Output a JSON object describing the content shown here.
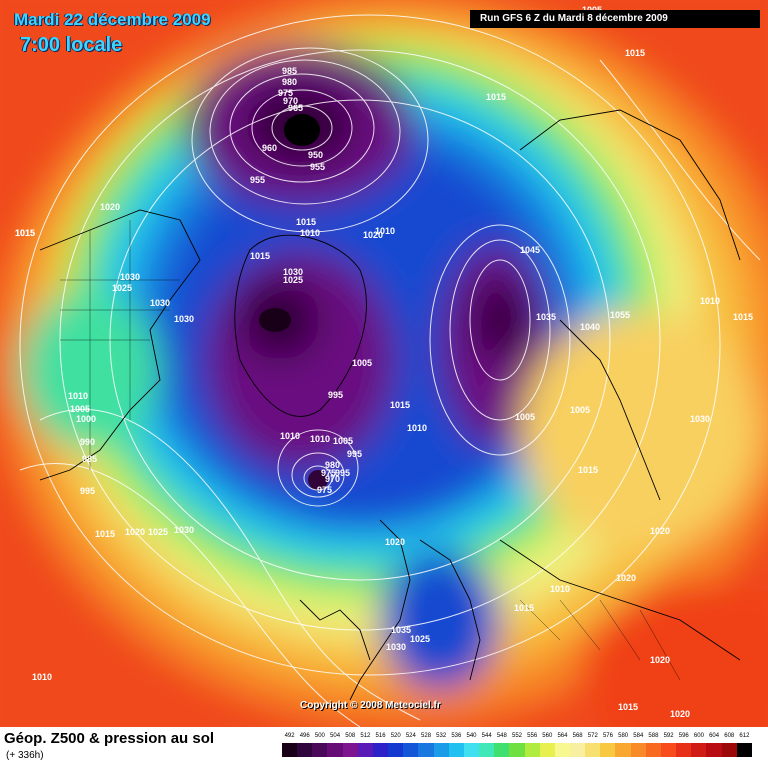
{
  "header": {
    "date_line": "Mardi 22 décembre 2009",
    "time_line": "7:00 locale",
    "run_info": "Run GFS 6 Z du Mardi 8 décembre 2009"
  },
  "footer": {
    "copyright": "Copyright © 2008 Meteociel.fr",
    "legend_title": "Géop. Z500 & pression au sol",
    "legend_subtitle": "(+ 336h)"
  },
  "scale": {
    "values": [
      "492",
      "496",
      "500",
      "504",
      "508",
      "512",
      "516",
      "520",
      "524",
      "528",
      "532",
      "536",
      "540",
      "544",
      "548",
      "552",
      "556",
      "560",
      "564",
      "568",
      "572",
      "576",
      "580",
      "584",
      "588",
      "592",
      "596",
      "600",
      "604",
      "608",
      "612"
    ],
    "colors": [
      "#180018",
      "#30043c",
      "#4a0858",
      "#660c74",
      "#7e1490",
      "#5a1ab8",
      "#2c22c8",
      "#1438d0",
      "#1456d8",
      "#1878e0",
      "#1a9ce8",
      "#20c0f0",
      "#40e0f0",
      "#40e8b8",
      "#40e070",
      "#70e040",
      "#b0ec40",
      "#e8f050",
      "#f8f890",
      "#f8f0a0",
      "#f8e070",
      "#f8c840",
      "#f8a830",
      "#f88a28",
      "#f86a20",
      "#f84c1c",
      "#e83018",
      "#d01c14",
      "#b80c10",
      "#9c0808",
      "#000000"
    ]
  },
  "pressure_labels": [
    "1005",
    "1015",
    "985",
    "980",
    "975",
    "970",
    "965",
    "960",
    "950",
    "955",
    "955",
    "1015",
    "1020",
    "1015",
    "1010",
    "1030",
    "1025",
    "1025",
    "1030",
    "1015",
    "1030",
    "1020",
    "1015",
    "1010",
    "1030",
    "1005",
    "995",
    "1015",
    "1010",
    "995",
    "1010",
    "1010",
    "1005",
    "995",
    "980",
    "975",
    "970",
    "975",
    "1045",
    "1035",
    "1055",
    "1040",
    "1005",
    "1015",
    "1015",
    "1010",
    "1015",
    "1030",
    "1010",
    "1005",
    "1000",
    "990",
    "985",
    "995",
    "1015",
    "1020",
    "1025",
    "1030",
    "1020",
    "1035",
    "1025",
    "1030",
    "1010",
    "1015",
    "1020",
    "1020",
    "1010",
    "1020",
    "1015",
    "1020",
    "1005"
  ]
}
